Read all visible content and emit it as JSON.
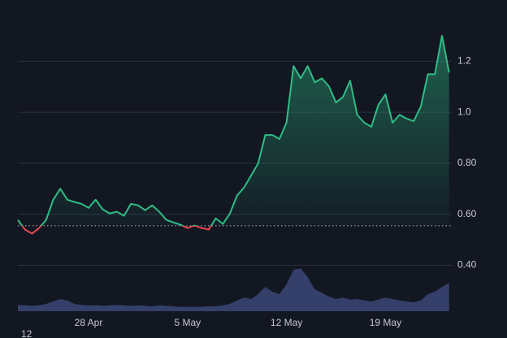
{
  "chart_data": {
    "type": "line",
    "categories": [
      null,
      null,
      null,
      null,
      null,
      null,
      null,
      null,
      null,
      null,
      "28 Apr",
      null,
      null,
      null,
      null,
      null,
      null,
      null,
      null,
      null,
      null,
      null,
      null,
      null,
      "5 May",
      null,
      null,
      null,
      null,
      null,
      null,
      null,
      null,
      null,
      null,
      null,
      null,
      null,
      "12 May",
      null,
      null,
      null,
      null,
      null,
      null,
      null,
      null,
      null,
      null,
      null,
      null,
      null,
      "19 May",
      null,
      null,
      null,
      null,
      null,
      null,
      null,
      null,
      null
    ],
    "values": [
      0.578,
      0.54,
      0.524,
      0.546,
      0.578,
      0.657,
      0.7,
      0.657,
      0.648,
      0.641,
      0.625,
      0.657,
      0.619,
      0.603,
      0.61,
      0.594,
      0.641,
      0.635,
      0.616,
      0.635,
      0.61,
      0.578,
      0.568,
      0.559,
      0.546,
      0.556,
      0.546,
      0.54,
      0.584,
      0.562,
      0.603,
      0.673,
      0.705,
      0.752,
      0.8,
      0.911,
      0.911,
      0.895,
      0.959,
      1.181,
      1.133,
      1.181,
      1.117,
      1.133,
      1.102,
      1.038,
      1.06,
      1.124,
      0.99,
      0.959,
      0.943,
      1.029,
      1.07,
      0.959,
      0.99,
      0.975,
      0.965,
      1.022,
      1.149,
      1.149,
      1.3,
      1.156
    ],
    "color": "#2ebd85",
    "below_color": "#e5484d",
    "baseline": 0.555,
    "ylim": [
      0.22,
      1.44
    ],
    "yticks": [
      {
        "value": 0.4,
        "label": "0.40"
      },
      {
        "value": 0.6,
        "label": "0.60"
      },
      {
        "value": 0.8,
        "label": "0.80"
      },
      {
        "value": 1.0,
        "label": "1.0"
      },
      1.2
    ],
    "grid": true,
    "volume": {
      "values": [
        13,
        12,
        11,
        12,
        15,
        20,
        25,
        22,
        15,
        13,
        12,
        12,
        11,
        12,
        13,
        12,
        11,
        12,
        11,
        10,
        12,
        11,
        10,
        9,
        9,
        9,
        9,
        10,
        10,
        12,
        15,
        22,
        28,
        25,
        35,
        50,
        40,
        35,
        55,
        85,
        88,
        70,
        45,
        38,
        30,
        25,
        28,
        24,
        25,
        22,
        20,
        24,
        28,
        25,
        22,
        20,
        18,
        22,
        35,
        40,
        50,
        58
      ],
      "ylim": [
        0,
        100
      ],
      "color": "#3b4677"
    },
    "corner_text": "12"
  }
}
